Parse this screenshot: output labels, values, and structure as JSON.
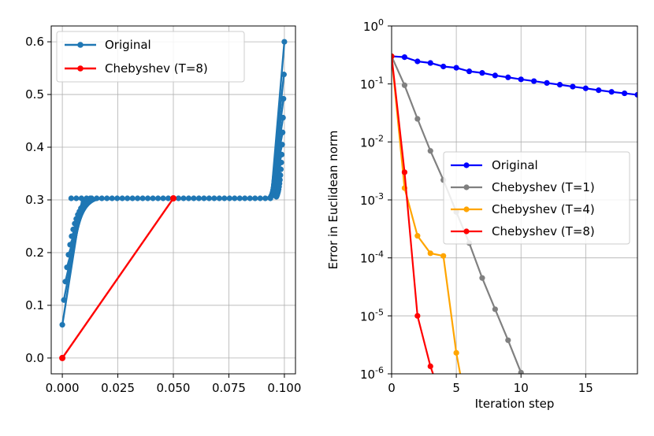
{
  "chart_data": [
    {
      "type": "line",
      "title": "",
      "xlabel": "",
      "ylabel": "",
      "xlim": [
        -0.005,
        0.105
      ],
      "ylim": [
        -0.03,
        0.63
      ],
      "x_ticks": [
        0.0,
        0.025,
        0.05,
        0.075,
        0.1
      ],
      "x_tick_labels": [
        "0.000",
        "0.025",
        "0.050",
        "0.075",
        "0.100"
      ],
      "y_ticks": [
        0.0,
        0.1,
        0.2,
        0.3,
        0.4,
        0.5,
        0.6
      ],
      "y_tick_labels": [
        "0.0",
        "0.1",
        "0.2",
        "0.3",
        "0.4",
        "0.5",
        "0.6"
      ],
      "grid": true,
      "legend_position": "top-left",
      "series": [
        {
          "name": "Original",
          "color": "#1f77b4",
          "description_of_points": "Fan of segments joining left-end points (near x=0) to right-end points (near x=0.1) through the region around y≈0.3",
          "left_points_y": [
            0.063,
            0.11,
            0.145,
            0.172,
            0.196,
            0.215,
            0.231,
            0.244,
            0.255,
            0.264,
            0.272,
            0.278,
            0.284,
            0.288,
            0.292,
            0.296,
            0.299,
            0.301,
            0.303
          ],
          "right_points_y": [
            0.6,
            0.538,
            0.492,
            0.456,
            0.428,
            0.405,
            0.386,
            0.371,
            0.358,
            0.347,
            0.338,
            0.331,
            0.325,
            0.32,
            0.316,
            0.313,
            0.31,
            0.308,
            0.306
          ]
        },
        {
          "name": "Chebyshev (T=8)",
          "color": "#ff0000",
          "x": [
            0.0,
            0.05
          ],
          "y": [
            0.0,
            0.303
          ]
        }
      ]
    },
    {
      "type": "line",
      "title": "",
      "xlabel": "Iteration step",
      "ylabel": "Error in Euclidean norm",
      "yscale": "log",
      "xlim": [
        0,
        19
      ],
      "ylim": [
        1e-06,
        1
      ],
      "x_ticks": [
        0,
        5,
        10,
        15
      ],
      "x_tick_labels": [
        "0",
        "5",
        "10",
        "15"
      ],
      "y_ticks": [
        1,
        0.1,
        0.01,
        0.001,
        0.0001,
        1e-05,
        1e-06
      ],
      "y_tick_labels": [
        {
          "base": "10",
          "exp": "0"
        },
        {
          "base": "10",
          "exp": "-1"
        },
        {
          "base": "10",
          "exp": "-2"
        },
        {
          "base": "10",
          "exp": "-3"
        },
        {
          "base": "10",
          "exp": "-4"
        },
        {
          "base": "10",
          "exp": "-5"
        },
        {
          "base": "10",
          "exp": "-6"
        }
      ],
      "grid": true,
      "legend_position": "center-right",
      "series": [
        {
          "name": "Original",
          "color": "#0000ff",
          "x": [
            0,
            1,
            2,
            3,
            4,
            5,
            6,
            7,
            8,
            9,
            10,
            11,
            12,
            13,
            14,
            15,
            16,
            17,
            18,
            19
          ],
          "y": [
            0.3,
            0.29,
            0.245,
            0.23,
            0.2,
            0.19,
            0.165,
            0.155,
            0.14,
            0.13,
            0.12,
            0.112,
            0.104,
            0.097,
            0.09,
            0.084,
            0.078,
            0.073,
            0.069,
            0.065
          ]
        },
        {
          "name": "Chebyshev (T=1)",
          "color": "#808080",
          "x": [
            0,
            1,
            2,
            3,
            4,
            5,
            6,
            7,
            8,
            9,
            10
          ],
          "y": [
            0.3,
            0.095,
            0.025,
            0.007,
            0.0022,
            0.00062,
            0.00018,
            4.5e-05,
            1.3e-05,
            3.8e-06,
            1.05e-06
          ]
        },
        {
          "name": "Chebyshev (T=4)",
          "color": "#ffa500",
          "x": [
            0,
            1,
            2,
            3,
            4,
            5,
            5.3
          ],
          "y": [
            0.3,
            0.0016,
            0.00024,
            0.00012,
            0.000108,
            2.3e-06,
            1e-06
          ]
        },
        {
          "name": "Chebyshev (T=8)",
          "color": "#ff0000",
          "x": [
            0,
            1,
            2,
            3,
            3.2
          ],
          "y": [
            0.3,
            0.003,
            1e-05,
            1.35e-06,
            1e-06
          ]
        }
      ]
    }
  ]
}
